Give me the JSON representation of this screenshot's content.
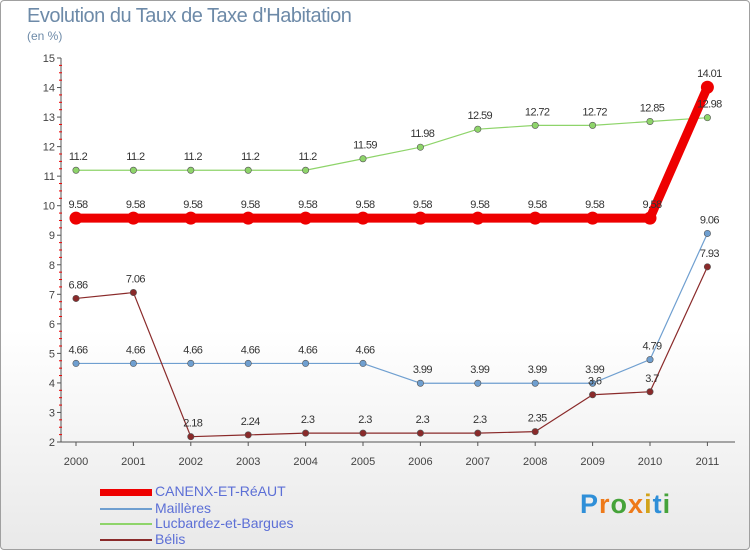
{
  "title": "Evolution du Taux de Taxe d'Habitation",
  "subtitle": "(en %)",
  "brand": "Proxiti",
  "chart_data": {
    "type": "line",
    "title": "Evolution du Taux de Taxe d'Habitation",
    "subtitle": "(en %)",
    "xlabel": "",
    "ylabel": "",
    "x": [
      "2000",
      "2001",
      "2002",
      "2003",
      "2004",
      "2005",
      "2006",
      "2007",
      "2008",
      "2009",
      "2010",
      "2011"
    ],
    "ylim": [
      2,
      15
    ],
    "yticks": [
      "2",
      "3",
      "4",
      "5",
      "6",
      "7",
      "8",
      "9",
      "10",
      "11",
      "12",
      "13",
      "14",
      "15"
    ],
    "grid": false,
    "legend_position": "bottom-left",
    "series": [
      {
        "name": "CANENX-ET-RéAUT",
        "color": "#ee0000",
        "values": [
          9.58,
          9.58,
          9.58,
          9.58,
          9.58,
          9.58,
          9.58,
          9.58,
          9.58,
          9.58,
          9.58,
          14.01
        ],
        "labels": [
          "9.58",
          "9.58",
          "9.58",
          "9.58",
          "9.58",
          "9.58",
          "9.58",
          "9.58",
          "9.58",
          "9.58",
          "9.58",
          "14.01"
        ]
      },
      {
        "name": "Maillères",
        "color": "#6f9fd0",
        "values": [
          4.66,
          4.66,
          4.66,
          4.66,
          4.66,
          4.66,
          3.99,
          3.99,
          3.99,
          3.99,
          4.79,
          9.06
        ],
        "labels": [
          "4.66",
          "4.66",
          "4.66",
          "4.66",
          "4.66",
          "4.66",
          "3.99",
          "3.99",
          "3.99",
          "3.99",
          "4.79",
          "9.06"
        ]
      },
      {
        "name": "Lucbardez-et-Bargues",
        "color": "#8ed46a",
        "values": [
          11.2,
          11.2,
          11.2,
          11.2,
          11.2,
          11.59,
          11.98,
          12.59,
          12.72,
          12.72,
          12.85,
          12.98
        ],
        "labels": [
          "11.2",
          "11.2",
          "11.2",
          "11.2",
          "11.2",
          "11.59",
          "11.98",
          "12.59",
          "12.72",
          "12.72",
          "12.85",
          "12.98"
        ]
      },
      {
        "name": "Bélis",
        "color": "#8a2a2a",
        "values": [
          6.86,
          7.06,
          2.18,
          2.24,
          2.3,
          2.3,
          2.3,
          2.3,
          2.35,
          3.6,
          3.7,
          7.93
        ],
        "labels": [
          "6.86",
          "7.06",
          "2.18",
          "2.24",
          "2.3",
          "2.3",
          "2.3",
          "2.3",
          "2.35",
          "3.6",
          "3.7",
          "7.93"
        ]
      }
    ]
  }
}
